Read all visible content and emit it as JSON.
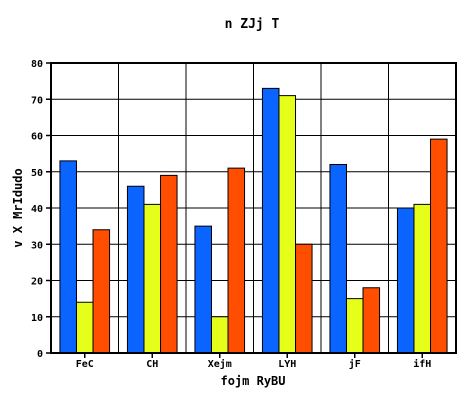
{
  "chart_data": {
    "type": "bar",
    "title": "n ZJj T",
    "xlabel": "fojm RyBU",
    "ylabel": "v  X MrIdudo",
    "categories": [
      "FeC",
      "CH",
      "Xejm",
      "LYH",
      "jF",
      "ifH"
    ],
    "series": [
      {
        "color": "#0a64ff",
        "values": [
          53,
          46,
          35,
          73,
          52,
          40
        ]
      },
      {
        "color": "#e6ff1a",
        "values": [
          14,
          41,
          10,
          71,
          15,
          41
        ]
      },
      {
        "color": "#ff4e00",
        "values": [
          34,
          49,
          51,
          30,
          18,
          59
        ]
      }
    ],
    "ylim": [
      0,
      80
    ],
    "yticks": [
      0,
      10,
      20,
      30,
      40,
      50,
      60,
      70,
      80
    ],
    "grid": true,
    "legend": "none"
  }
}
